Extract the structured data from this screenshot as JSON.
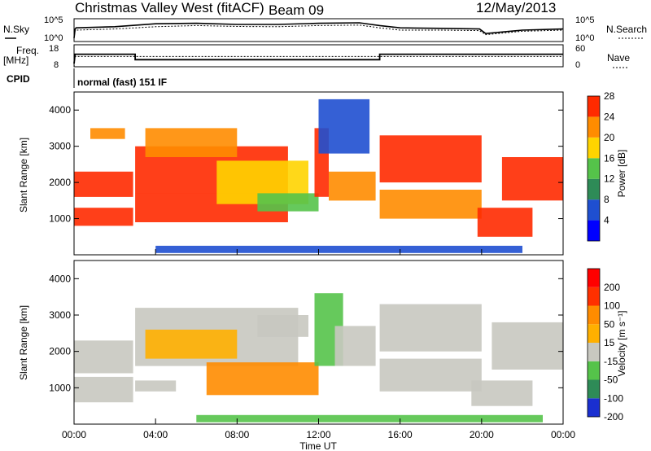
{
  "title": {
    "station": "Christmas Valley West (fitACF)",
    "beam": "Beam 09",
    "date": "12/May/2013"
  },
  "chart_data": [
    {
      "type": "line",
      "panel": "noise",
      "left_label": "N.Sky",
      "right_label": "N.Search",
      "left_ticks": [
        "10^5",
        "10^0"
      ],
      "right_ticks": [
        "10^5",
        "10^0"
      ],
      "series": [
        {
          "name": "N.Sky",
          "x": [
            0,
            0.05,
            0.1,
            2,
            4,
            6,
            8,
            10,
            12,
            14,
            15,
            16,
            18,
            19.9,
            20.2,
            22,
            24
          ],
          "y": [
            0.15,
            0.55,
            0.6,
            0.65,
            0.78,
            0.8,
            0.75,
            0.75,
            0.8,
            0.82,
            0.7,
            0.6,
            0.58,
            0.55,
            0.35,
            0.5,
            0.55
          ]
        },
        {
          "name": "N.Search",
          "x": [
            0,
            0.05,
            2,
            4,
            6,
            8,
            10,
            12,
            14,
            15,
            16,
            18,
            19.9,
            20.2,
            22,
            24
          ],
          "y": [
            0.15,
            0.5,
            0.55,
            0.65,
            0.7,
            0.66,
            0.65,
            0.7,
            0.72,
            0.6,
            0.5,
            0.5,
            0.48,
            0.3,
            0.45,
            0.5
          ]
        }
      ]
    },
    {
      "type": "line",
      "panel": "frequency",
      "left_label_1": "Freq.",
      "left_label_2": "[MHz]",
      "right_label": "Nave",
      "left_ticks": [
        "18",
        "8"
      ],
      "right_ticks": [
        "60",
        "0"
      ],
      "series": [
        {
          "name": "Freq.",
          "x": [
            0,
            0.05,
            3,
            3,
            15,
            15,
            24
          ],
          "y": [
            8,
            14,
            14,
            10.5,
            10.5,
            14,
            14
          ]
        },
        {
          "name": "Nave",
          "x": [
            0,
            0.05,
            24
          ],
          "y": [
            0,
            28,
            28
          ]
        }
      ]
    },
    {
      "type": "text",
      "panel": "cpid",
      "label": "CPID",
      "value": "normal (fast) 151 IF"
    },
    {
      "type": "heatmap",
      "panel": "power",
      "ylabel": "Slant Range [km]",
      "yticks": [
        "1000",
        "2000",
        "3000",
        "4000"
      ],
      "ylim": [
        0,
        4500
      ],
      "xlim": [
        0,
        24
      ],
      "colorbar_label": "Power [dB]",
      "colorbar_ticks": [
        "4",
        "8",
        "12",
        "16",
        "20",
        "24",
        "28"
      ],
      "colors": [
        "#0000ff",
        "#1f4fd0",
        "#2e8b57",
        "#55c34a",
        "#ffd400",
        "#ff8c00",
        "#ff2a00"
      ],
      "bands": [
        {
          "t0": 0,
          "t1": 2.9,
          "r0": 1600,
          "r1": 2300,
          "level": 6
        },
        {
          "t0": 0,
          "t1": 2.9,
          "r0": 800,
          "r1": 1300,
          "level": 6
        },
        {
          "t0": 0.8,
          "t1": 2.5,
          "r0": 3200,
          "r1": 3500,
          "level": 5
        },
        {
          "t0": 3,
          "t1": 10.5,
          "r0": 900,
          "r1": 1700,
          "level": 6
        },
        {
          "t0": 3,
          "t1": 10.5,
          "r0": 1700,
          "r1": 3000,
          "level": 6
        },
        {
          "t0": 3.5,
          "t1": 8,
          "r0": 2700,
          "r1": 3500,
          "level": 5
        },
        {
          "t0": 7,
          "t1": 11.5,
          "r0": 1400,
          "r1": 2600,
          "level": 4
        },
        {
          "t0": 9,
          "t1": 12,
          "r0": 1200,
          "r1": 1700,
          "level": 3
        },
        {
          "t0": 11.8,
          "t1": 12.5,
          "r0": 1600,
          "r1": 3500,
          "level": 6
        },
        {
          "t0": 12.5,
          "t1": 14.8,
          "r0": 1500,
          "r1": 2300,
          "level": 5
        },
        {
          "t0": 12,
          "t1": 14.5,
          "r0": 2800,
          "r1": 4300,
          "level": 1
        },
        {
          "t0": 15,
          "t1": 20,
          "r0": 2000,
          "r1": 3300,
          "level": 6
        },
        {
          "t0": 15,
          "t1": 20,
          "r0": 1000,
          "r1": 1800,
          "level": 5
        },
        {
          "t0": 19.8,
          "t1": 22.5,
          "r0": 500,
          "r1": 1300,
          "level": 6
        },
        {
          "t0": 21,
          "t1": 24,
          "r0": 1500,
          "r1": 2700,
          "level": 6
        },
        {
          "t0": 4,
          "t1": 22,
          "r0": 50,
          "r1": 250,
          "level": 1
        }
      ]
    },
    {
      "type": "heatmap",
      "panel": "velocity",
      "ylabel": "Slant Range [km]",
      "yticks": [
        "1000",
        "2000",
        "3000",
        "4000"
      ],
      "ylim": [
        0,
        4500
      ],
      "xlim": [
        0,
        24
      ],
      "xticks": [
        "00:00",
        "04:00",
        "08:00",
        "12:00",
        "16:00",
        "20:00",
        "00:00"
      ],
      "xlabel": "Time UT",
      "colorbar_label": "Velocity [m s⁻¹]",
      "colorbar_ticks": [
        "200",
        "100",
        "50",
        "15",
        "-15",
        "-50",
        "-100",
        "-200"
      ],
      "colors": [
        "#1a2fd0",
        "#2e8b57",
        "#55c34a",
        "#c8c8c0",
        "#ffb000",
        "#ff8c00",
        "#ff3000",
        "#ff0000"
      ],
      "bands": [
        {
          "t0": 0,
          "t1": 2.9,
          "r0": 1400,
          "r1": 2300,
          "level": 3
        },
        {
          "t0": 0,
          "t1": 2.9,
          "r0": 600,
          "r1": 1300,
          "level": 3
        },
        {
          "t0": 3,
          "t1": 11,
          "r0": 1600,
          "r1": 3200,
          "level": 3
        },
        {
          "t0": 3.5,
          "t1": 8,
          "r0": 1800,
          "r1": 2600,
          "level": 4
        },
        {
          "t0": 3,
          "t1": 5,
          "r0": 900,
          "r1": 1200,
          "level": 3
        },
        {
          "t0": 6.5,
          "t1": 12,
          "r0": 800,
          "r1": 1700,
          "level": 5
        },
        {
          "t0": 9,
          "t1": 11.5,
          "r0": 2400,
          "r1": 3000,
          "level": 3
        },
        {
          "t0": 11.8,
          "t1": 13.2,
          "r0": 1600,
          "r1": 3600,
          "level": 2
        },
        {
          "t0": 12.8,
          "t1": 14.8,
          "r0": 1600,
          "r1": 2700,
          "level": 3
        },
        {
          "t0": 15,
          "t1": 20,
          "r0": 2000,
          "r1": 3300,
          "level": 3
        },
        {
          "t0": 15,
          "t1": 20,
          "r0": 900,
          "r1": 1800,
          "level": 3
        },
        {
          "t0": 19.5,
          "t1": 22.5,
          "r0": 500,
          "r1": 1200,
          "level": 3
        },
        {
          "t0": 20.5,
          "t1": 24,
          "r0": 1500,
          "r1": 2800,
          "level": 3
        },
        {
          "t0": 6,
          "t1": 23,
          "r0": 50,
          "r1": 250,
          "level": 2
        }
      ]
    }
  ]
}
